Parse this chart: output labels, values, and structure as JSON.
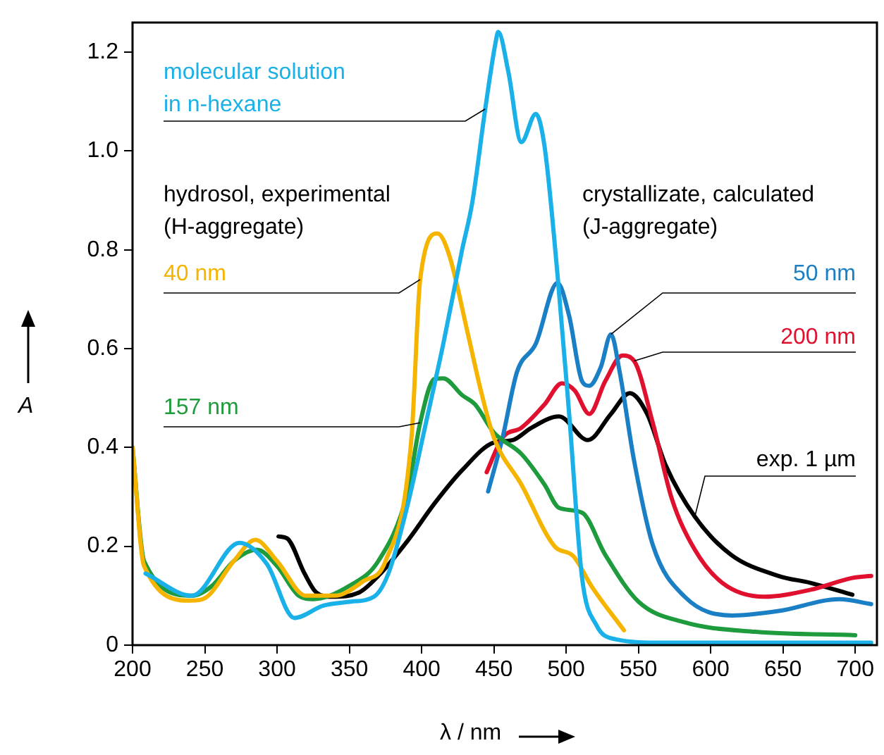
{
  "chart_data": {
    "type": "line",
    "xlabel": "λ / nm",
    "ylabel": "A",
    "xlim": [
      200,
      715
    ],
    "ylim": [
      0,
      1.26
    ],
    "xticks": [
      200,
      250,
      300,
      350,
      400,
      450,
      500,
      550,
      600,
      650,
      700
    ],
    "yticks": [
      0,
      0.2,
      0.4,
      0.6,
      0.8,
      {
        "value": 1,
        "label": "1.0"
      },
      1.2
    ],
    "annotations": [
      "hydrosol, experimental",
      "(H-aggregate)",
      "crystallizate, calculated",
      "(J-aggregate)"
    ],
    "legend": false,
    "series": [
      {
        "name": "molecular solution in n-hexane",
        "color": "#1ab0e8",
        "x": [
          209,
          241,
          274,
          293,
          312,
          332,
          351,
          367,
          377,
          390,
          403,
          415,
          428,
          435,
          444,
          451,
          453,
          460,
          469,
          479,
          485,
          494,
          502,
          511,
          521,
          534,
          566,
          711
        ],
        "values": [
          0.145,
          0.1,
          0.207,
          0.164,
          0.055,
          0.08,
          0.088,
          0.098,
          0.145,
          0.28,
          0.45,
          0.61,
          0.8,
          0.895,
          1.085,
          1.217,
          1.241,
          1.16,
          1.018,
          1.075,
          1.01,
          0.75,
          0.47,
          0.136,
          0.04,
          0.012,
          0.005,
          0.005
        ]
      },
      {
        "name": "40 nm",
        "color": "#f5b400",
        "x": [
          200,
          208,
          240,
          250,
          270,
          285,
          300,
          320,
          340,
          360,
          375,
          393,
          399,
          411,
          419,
          432,
          441,
          450,
          469,
          492,
          505,
          518,
          540
        ],
        "values": [
          0.4,
          0.16,
          0.09,
          0.095,
          0.17,
          0.213,
          0.17,
          0.1,
          0.1,
          0.13,
          0.17,
          0.42,
          0.74,
          0.833,
          0.79,
          0.63,
          0.515,
          0.42,
          0.325,
          0.2,
          0.18,
          0.117,
          0.03
        ]
      },
      {
        "name": "157 nm",
        "color": "#1e9b3c",
        "x": [
          200,
          208,
          241,
          255,
          270,
          286,
          300,
          315,
          325,
          350,
          370,
          390,
          399,
          409,
          415,
          428,
          437,
          450,
          469,
          485,
          495,
          511,
          527,
          550,
          582,
          631,
          700
        ],
        "values": [
          0.4,
          0.17,
          0.1,
          0.12,
          0.17,
          0.193,
          0.16,
          0.1,
          0.093,
          0.12,
          0.17,
          0.306,
          0.45,
          0.539,
          0.54,
          0.506,
          0.487,
          0.43,
          0.387,
          0.325,
          0.278,
          0.268,
          0.183,
          0.088,
          0.046,
          0.027,
          0.02
        ]
      },
      {
        "name": "50 nm",
        "color": "#1a7fc4",
        "x": [
          446,
          456,
          466,
          479,
          494,
          502,
          511,
          516,
          524,
          531,
          537,
          547,
          560,
          582,
          615,
          647,
          689,
          711
        ],
        "values": [
          0.311,
          0.42,
          0.553,
          0.61,
          0.733,
          0.667,
          0.534,
          0.525,
          0.563,
          0.629,
          0.553,
          0.373,
          0.202,
          0.098,
          0.06,
          0.069,
          0.093,
          0.083
        ]
      },
      {
        "name": "200 nm",
        "color": "#e0102f",
        "x": [
          445,
          456,
          469,
          485,
          497,
          506,
          516,
          527,
          539,
          547,
          560,
          573,
          589,
          608,
          637,
          669,
          698,
          711
        ],
        "values": [
          0.35,
          0.42,
          0.44,
          0.487,
          0.53,
          0.515,
          0.468,
          0.534,
          0.586,
          0.575,
          0.449,
          0.297,
          0.193,
          0.126,
          0.098,
          0.112,
          0.136,
          0.14
        ]
      },
      {
        "name": "exp. 1 µm",
        "color": "#000000",
        "x": [
          301,
          307,
          319,
          327,
          338,
          357,
          370,
          390,
          409,
          428,
          450,
          463,
          476,
          495,
          515,
          531,
          544,
          556,
          569,
          589,
          614,
          647,
          669,
          698
        ],
        "values": [
          0.22,
          0.216,
          0.145,
          0.107,
          0.098,
          0.107,
          0.14,
          0.21,
          0.287,
          0.354,
          0.41,
          0.415,
          0.44,
          0.463,
          0.415,
          0.468,
          0.51,
          0.468,
          0.363,
          0.26,
          0.183,
          0.14,
          0.126,
          0.102
        ]
      }
    ]
  }
}
